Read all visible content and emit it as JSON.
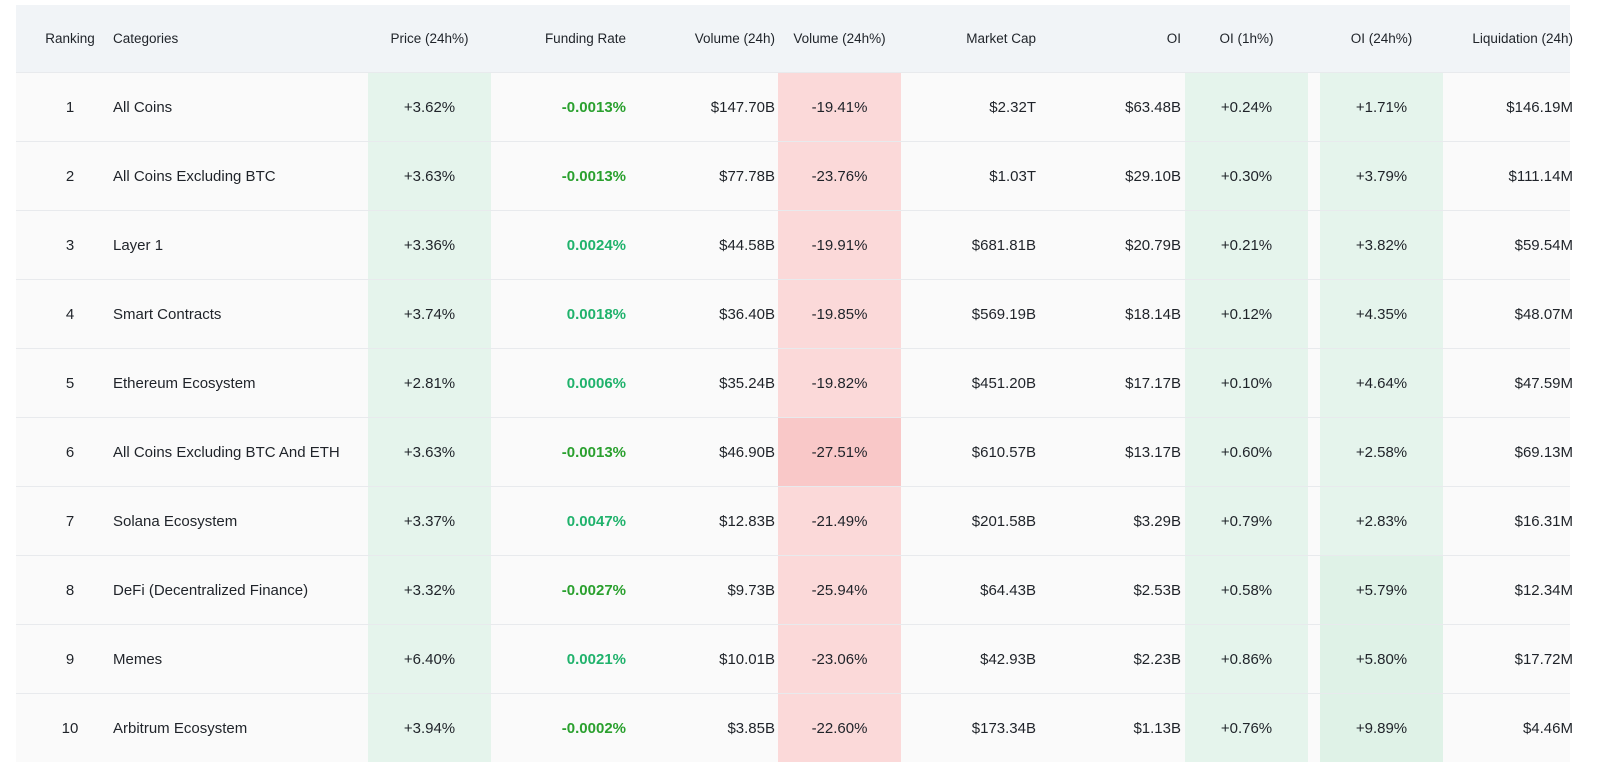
{
  "columns": {
    "ranking": "Ranking",
    "categories": "Categories",
    "price": "Price (24h%)",
    "funding": "Funding Rate",
    "volume": "Volume (24h)",
    "volume_change": "Volume (24h%)",
    "market_cap": "Market Cap",
    "oi": "OI",
    "oi_1h": "OI (1h%)",
    "oi_24h": "OI (24h%)",
    "liquidation": "Liquidation (24h)"
  },
  "colors": {
    "green_cell": "#e5f4ec",
    "green_cell_strong": "#dff2e7",
    "red_cell": "#fbd9d9",
    "red_cell_strong": "#f9c8c8",
    "funding_text": "#20b26c"
  },
  "rows": [
    {
      "rank": "1",
      "category": "All Coins",
      "price": "+3.62%",
      "funding": "-0.0013%",
      "volume": "$147.70B",
      "volume_change": "-19.41%",
      "market_cap": "$2.32T",
      "oi": "$63.48B",
      "oi_1h": "+0.24%",
      "oi_24h": "+1.71%",
      "liquidation": "$146.19M"
    },
    {
      "rank": "2",
      "category": "All Coins Excluding BTC",
      "price": "+3.63%",
      "funding": "-0.0013%",
      "volume": "$77.78B",
      "volume_change": "-23.76%",
      "market_cap": "$1.03T",
      "oi": "$29.10B",
      "oi_1h": "+0.30%",
      "oi_24h": "+3.79%",
      "liquidation": "$111.14M"
    },
    {
      "rank": "3",
      "category": "Layer 1",
      "price": "+3.36%",
      "funding": "0.0024%",
      "volume": "$44.58B",
      "volume_change": "-19.91%",
      "market_cap": "$681.81B",
      "oi": "$20.79B",
      "oi_1h": "+0.21%",
      "oi_24h": "+3.82%",
      "liquidation": "$59.54M"
    },
    {
      "rank": "4",
      "category": "Smart Contracts",
      "price": "+3.74%",
      "funding": "0.0018%",
      "volume": "$36.40B",
      "volume_change": "-19.85%",
      "market_cap": "$569.19B",
      "oi": "$18.14B",
      "oi_1h": "+0.12%",
      "oi_24h": "+4.35%",
      "liquidation": "$48.07M"
    },
    {
      "rank": "5",
      "category": "Ethereum Ecosystem",
      "price": "+2.81%",
      "funding": "0.0006%",
      "volume": "$35.24B",
      "volume_change": "-19.82%",
      "market_cap": "$451.20B",
      "oi": "$17.17B",
      "oi_1h": "+0.10%",
      "oi_24h": "+4.64%",
      "liquidation": "$47.59M"
    },
    {
      "rank": "6",
      "category": "All Coins Excluding BTC And ETH",
      "price": "+3.63%",
      "funding": "-0.0013%",
      "volume": "$46.90B",
      "volume_change": "-27.51%",
      "market_cap": "$610.57B",
      "oi": "$13.17B",
      "oi_1h": "+0.60%",
      "oi_24h": "+2.58%",
      "liquidation": "$69.13M"
    },
    {
      "rank": "7",
      "category": "Solana Ecosystem",
      "price": "+3.37%",
      "funding": "0.0047%",
      "volume": "$12.83B",
      "volume_change": "-21.49%",
      "market_cap": "$201.58B",
      "oi": "$3.29B",
      "oi_1h": "+0.79%",
      "oi_24h": "+2.83%",
      "liquidation": "$16.31M"
    },
    {
      "rank": "8",
      "category": "DeFi (Decentralized Finance)",
      "price": "+3.32%",
      "funding": "-0.0027%",
      "volume": "$9.73B",
      "volume_change": "-25.94%",
      "market_cap": "$64.43B",
      "oi": "$2.53B",
      "oi_1h": "+0.58%",
      "oi_24h": "+5.79%",
      "liquidation": "$12.34M"
    },
    {
      "rank": "9",
      "category": "Memes",
      "price": "+6.40%",
      "funding": "0.0021%",
      "volume": "$10.01B",
      "volume_change": "-23.06%",
      "market_cap": "$42.93B",
      "oi": "$2.23B",
      "oi_1h": "+0.86%",
      "oi_24h": "+5.80%",
      "liquidation": "$17.72M"
    },
    {
      "rank": "10",
      "category": "Arbitrum Ecosystem",
      "price": "+3.94%",
      "funding": "-0.0002%",
      "volume": "$3.85B",
      "volume_change": "-22.60%",
      "market_cap": "$173.34B",
      "oi": "$1.13B",
      "oi_1h": "+0.76%",
      "oi_24h": "+9.89%",
      "liquidation": "$4.46M"
    }
  ]
}
